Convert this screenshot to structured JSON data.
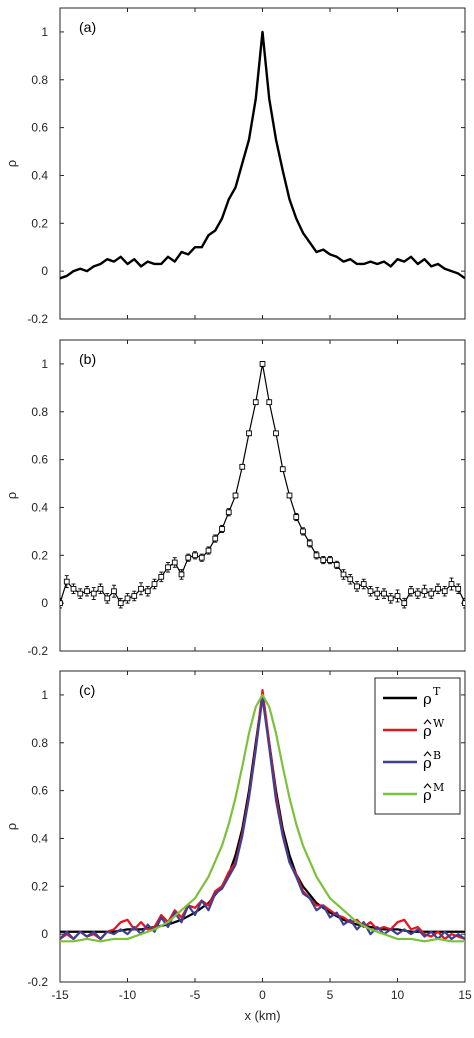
{
  "chart_data": [
    {
      "type": "line",
      "panel_label": "(a)",
      "ylabel": "ρ",
      "xlim": [
        -15,
        15
      ],
      "ylim": [
        -0.2,
        1.1
      ],
      "xticks": [
        -15,
        -10,
        -5,
        0,
        5,
        10,
        15
      ],
      "yticks": [
        -0.2,
        0,
        0.2,
        0.4,
        0.6,
        0.8,
        1
      ],
      "ytick_labels": [
        "-0.2",
        "0",
        "0.2",
        "0.4",
        "0.6",
        "0.8",
        "1"
      ],
      "show_xtick_labels": false,
      "grid": false,
      "series": [
        {
          "color": "#000000",
          "x": [
            -15,
            -14.5,
            -14,
            -13.5,
            -13,
            -12.5,
            -12,
            -11.5,
            -11,
            -10.5,
            -10,
            -9.5,
            -9,
            -8.5,
            -8,
            -7.5,
            -7,
            -6.5,
            -6,
            -5.5,
            -5,
            -4.5,
            -4,
            -3.5,
            -3,
            -2.5,
            -2,
            -1.5,
            -1,
            -0.5,
            0,
            0.5,
            1,
            1.5,
            2,
            2.5,
            3,
            3.5,
            4,
            4.5,
            5,
            5.5,
            6,
            6.5,
            7,
            7.5,
            8,
            8.5,
            9,
            9.5,
            10,
            10.5,
            11,
            11.5,
            12,
            12.5,
            13,
            13.5,
            14,
            14.5,
            15
          ],
          "y": [
            -0.03,
            -0.02,
            0.0,
            0.01,
            0.0,
            0.02,
            0.03,
            0.05,
            0.04,
            0.06,
            0.03,
            0.05,
            0.02,
            0.04,
            0.03,
            0.03,
            0.06,
            0.04,
            0.08,
            0.07,
            0.1,
            0.1,
            0.15,
            0.17,
            0.22,
            0.3,
            0.35,
            0.45,
            0.55,
            0.72,
            1.0,
            0.72,
            0.55,
            0.42,
            0.3,
            0.22,
            0.16,
            0.12,
            0.08,
            0.09,
            0.07,
            0.06,
            0.04,
            0.05,
            0.03,
            0.03,
            0.04,
            0.03,
            0.04,
            0.02,
            0.05,
            0.04,
            0.06,
            0.03,
            0.05,
            0.02,
            0.03,
            0.01,
            0.0,
            -0.01,
            -0.03
          ]
        }
      ]
    },
    {
      "type": "line",
      "panel_label": "(b)",
      "ylabel": "ρ",
      "xlim": [
        -15,
        15
      ],
      "ylim": [
        -0.2,
        1.1
      ],
      "xticks": [
        -15,
        -10,
        -5,
        0,
        5,
        10,
        15
      ],
      "yticks": [
        -0.2,
        0,
        0.2,
        0.4,
        0.6,
        0.8,
        1
      ],
      "ytick_labels": [
        "-0.2",
        "0",
        "0.2",
        "0.4",
        "0.6",
        "0.8",
        "1"
      ],
      "show_xtick_labels": false,
      "grid": false,
      "series": [
        {
          "color": "#000000",
          "markers": "square",
          "error_bars": true,
          "x": [
            -15,
            -14.5,
            -14,
            -13.5,
            -13,
            -12.5,
            -12,
            -11.5,
            -11,
            -10.5,
            -10,
            -9.5,
            -9,
            -8.5,
            -8,
            -7.5,
            -7,
            -6.5,
            -6,
            -5.5,
            -5,
            -4.5,
            -4,
            -3.5,
            -3,
            -2.5,
            -2,
            -1.5,
            -1,
            -0.5,
            0,
            0.5,
            1,
            1.5,
            2,
            2.5,
            3,
            3.5,
            4,
            4.5,
            5,
            5.5,
            6,
            6.5,
            7,
            7.5,
            8,
            8.5,
            9,
            9.5,
            10,
            10.5,
            11,
            11.5,
            12,
            12.5,
            13,
            13.5,
            14,
            14.5,
            15
          ],
          "y": [
            0.0,
            0.09,
            0.06,
            0.04,
            0.05,
            0.04,
            0.06,
            0.02,
            0.05,
            0.0,
            0.02,
            0.03,
            0.06,
            0.05,
            0.08,
            0.11,
            0.15,
            0.17,
            0.12,
            0.19,
            0.2,
            0.19,
            0.22,
            0.27,
            0.31,
            0.38,
            0.45,
            0.57,
            0.71,
            0.84,
            1.0,
            0.84,
            0.71,
            0.56,
            0.45,
            0.36,
            0.3,
            0.25,
            0.2,
            0.18,
            0.18,
            0.16,
            0.12,
            0.1,
            0.07,
            0.08,
            0.05,
            0.04,
            0.04,
            0.02,
            0.03,
            0.0,
            0.05,
            0.04,
            0.05,
            0.04,
            0.06,
            0.05,
            0.08,
            0.06,
            0.0
          ],
          "err": [
            0.02,
            0.025,
            0.02,
            0.02,
            0.02,
            0.025,
            0.02,
            0.02,
            0.025,
            0.02,
            0.02,
            0.02,
            0.025,
            0.02,
            0.02,
            0.02,
            0.02,
            0.02,
            0.02,
            0.015,
            0.015,
            0.015,
            0.015,
            0.015,
            0.015,
            0.015,
            0.01,
            0.01,
            0.01,
            0.01,
            0.01,
            0.01,
            0.01,
            0.01,
            0.01,
            0.015,
            0.015,
            0.015,
            0.015,
            0.015,
            0.015,
            0.015,
            0.02,
            0.02,
            0.02,
            0.02,
            0.02,
            0.025,
            0.02,
            0.02,
            0.025,
            0.02,
            0.02,
            0.02,
            0.025,
            0.02,
            0.02,
            0.02,
            0.025,
            0.02,
            0.02
          ]
        }
      ]
    },
    {
      "type": "line",
      "panel_label": "(c)",
      "ylabel": "ρ",
      "xlabel": "x (km)",
      "xlim": [
        -15,
        15
      ],
      "ylim": [
        -0.2,
        1.1
      ],
      "xticks": [
        -15,
        -10,
        -5,
        0,
        5,
        10,
        15
      ],
      "xtick_labels": [
        "-15",
        "-10",
        "-5",
        "0",
        "5",
        "10",
        "15"
      ],
      "yticks": [
        -0.2,
        0,
        0.2,
        0.4,
        0.6,
        0.8,
        1
      ],
      "ytick_labels": [
        "-0.2",
        "0",
        "0.2",
        "0.4",
        "0.6",
        "0.8",
        "1"
      ],
      "show_xtick_labels": true,
      "grid": false,
      "legend_placement": "top-right",
      "legend": [
        {
          "base": "ρ",
          "hat": false,
          "sup": "T",
          "color": "#000000"
        },
        {
          "base": "ρ",
          "hat": true,
          "sup": "W",
          "color": "#e8141c"
        },
        {
          "base": "ρ",
          "hat": true,
          "sup": "B",
          "color": "#3f3f95"
        },
        {
          "base": "ρ",
          "hat": true,
          "sup": "M",
          "color": "#7cc13a"
        }
      ],
      "series": [
        {
          "key": "T",
          "color": "#000000",
          "x": [
            -15,
            -14,
            -13,
            -12,
            -11,
            -10,
            -9,
            -8,
            -7,
            -6,
            -5,
            -4,
            -3,
            -2.5,
            -2,
            -1.5,
            -1,
            -0.5,
            0,
            0.5,
            1,
            1.5,
            2,
            2.5,
            3,
            4,
            5,
            6,
            7,
            8,
            9,
            10,
            11,
            12,
            13,
            14,
            15
          ],
          "y": [
            0.01,
            0.01,
            0.01,
            0.01,
            0.01,
            0.02,
            0.02,
            0.03,
            0.04,
            0.06,
            0.09,
            0.13,
            0.2,
            0.25,
            0.33,
            0.44,
            0.6,
            0.8,
            1.0,
            0.8,
            0.6,
            0.44,
            0.33,
            0.25,
            0.2,
            0.13,
            0.09,
            0.06,
            0.04,
            0.03,
            0.02,
            0.02,
            0.01,
            0.01,
            0.01,
            0.01,
            0.01
          ]
        },
        {
          "key": "W",
          "color": "#e8141c",
          "x": [
            -15,
            -14.5,
            -14,
            -13.5,
            -13,
            -12.5,
            -12,
            -11.5,
            -11,
            -10.5,
            -10,
            -9.5,
            -9,
            -8.5,
            -8,
            -7.5,
            -7,
            -6.5,
            -6,
            -5.5,
            -5,
            -4.5,
            -4,
            -3.5,
            -3,
            -2.5,
            -2,
            -1.5,
            -1,
            -0.5,
            0,
            0.5,
            1,
            1.5,
            2,
            2.5,
            3,
            3.5,
            4,
            4.5,
            5,
            5.5,
            6,
            6.5,
            7,
            7.5,
            8,
            8.5,
            9,
            9.5,
            10,
            10.5,
            11,
            11.5,
            12,
            12.5,
            13,
            13.5,
            14,
            14.5,
            15
          ],
          "y": [
            -0.02,
            0.0,
            -0.02,
            0.01,
            -0.01,
            0.0,
            -0.02,
            0.01,
            0.02,
            0.05,
            0.06,
            0.02,
            0.05,
            0.02,
            0.03,
            0.08,
            0.05,
            0.1,
            0.07,
            0.12,
            0.11,
            0.14,
            0.12,
            0.18,
            0.2,
            0.26,
            0.3,
            0.42,
            0.58,
            0.78,
            1.02,
            0.8,
            0.58,
            0.42,
            0.3,
            0.25,
            0.18,
            0.15,
            0.12,
            0.12,
            0.1,
            0.08,
            0.07,
            0.05,
            0.06,
            0.03,
            0.05,
            0.02,
            0.03,
            0.02,
            0.05,
            0.06,
            0.02,
            0.03,
            0.0,
            -0.01,
            0.01,
            -0.02,
            0.0,
            -0.01,
            -0.02
          ]
        },
        {
          "key": "B",
          "color": "#3f3f95",
          "x": [
            -15,
            -14.5,
            -14,
            -13.5,
            -13,
            -12.5,
            -12,
            -11.5,
            -11,
            -10.5,
            -10,
            -9.5,
            -9,
            -8.5,
            -8,
            -7.5,
            -7,
            -6.5,
            -6,
            -5.5,
            -5,
            -4.5,
            -4,
            -3.5,
            -3,
            -2.5,
            -2,
            -1.5,
            -1,
            -0.5,
            0,
            0.5,
            1,
            1.5,
            2,
            2.5,
            3,
            3.5,
            4,
            4.5,
            5,
            5.5,
            6,
            6.5,
            7,
            7.5,
            8,
            8.5,
            9,
            9.5,
            10,
            10.5,
            11,
            11.5,
            12,
            12.5,
            13,
            13.5,
            14,
            14.5,
            15
          ],
          "y": [
            -0.02,
            0.01,
            -0.02,
            0.01,
            -0.01,
            0.01,
            -0.02,
            0.01,
            0.0,
            0.02,
            0.0,
            0.03,
            0.0,
            0.04,
            0.01,
            0.07,
            0.03,
            0.09,
            0.05,
            0.12,
            0.08,
            0.14,
            0.1,
            0.17,
            0.19,
            0.24,
            0.29,
            0.41,
            0.57,
            0.77,
            0.99,
            0.78,
            0.56,
            0.41,
            0.3,
            0.24,
            0.17,
            0.15,
            0.1,
            0.12,
            0.07,
            0.09,
            0.04,
            0.06,
            0.02,
            0.05,
            0.0,
            0.03,
            0.0,
            0.02,
            0.0,
            0.02,
            0.0,
            0.02,
            -0.01,
            0.01,
            -0.02,
            0.01,
            -0.02,
            0.0,
            -0.02
          ]
        },
        {
          "key": "M",
          "color": "#7cc13a",
          "x": [
            -15,
            -14,
            -13,
            -12,
            -11,
            -10,
            -9,
            -8,
            -7,
            -6,
            -5,
            -4,
            -3,
            -2.5,
            -2,
            -1.5,
            -1,
            -0.5,
            0,
            0.5,
            1,
            1.5,
            2,
            2.5,
            3,
            4,
            5,
            6,
            7,
            8,
            9,
            10,
            11,
            12,
            13,
            14,
            15
          ],
          "y": [
            -0.03,
            -0.03,
            -0.02,
            -0.03,
            -0.02,
            -0.02,
            0.0,
            0.02,
            0.05,
            0.1,
            0.15,
            0.24,
            0.37,
            0.46,
            0.57,
            0.7,
            0.84,
            0.95,
            1.0,
            0.95,
            0.84,
            0.7,
            0.57,
            0.46,
            0.37,
            0.24,
            0.15,
            0.1,
            0.05,
            0.02,
            0.0,
            -0.02,
            -0.02,
            -0.03,
            -0.02,
            -0.03,
            -0.03
          ]
        }
      ]
    }
  ]
}
